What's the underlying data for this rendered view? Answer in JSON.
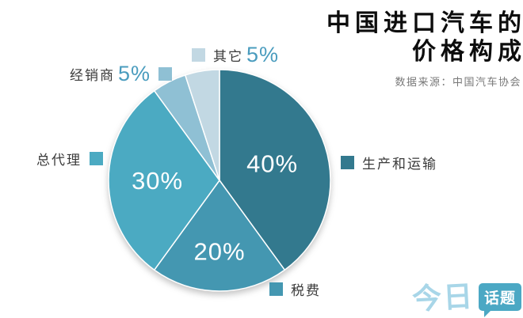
{
  "header": {
    "title_line1": "中国进口汽车的",
    "title_line2": "价格构成",
    "source": "数据来源：中国汽车协会"
  },
  "chart_data": {
    "type": "pie",
    "title": "中国进口汽车的价格构成",
    "source": "数据来源：中国汽车协会",
    "start_angle_deg": 0,
    "direction": "clockwise",
    "slices": [
      {
        "label": "生产和运输",
        "value": 40,
        "pct_label": "40%",
        "color": "#33798E",
        "inner_label": true,
        "label_r": 0.5
      },
      {
        "label": "税费",
        "value": 20,
        "pct_label": "20%",
        "color": "#4497B1",
        "inner_label": true,
        "label_r": 0.64
      },
      {
        "label": "总代理",
        "value": 30,
        "pct_label": "30%",
        "color": "#4BAAC2",
        "inner_label": true,
        "label_r": 0.56
      },
      {
        "label": "经销商",
        "value": 5,
        "pct_label": "5%",
        "color": "#8FC0D4",
        "inner_label": false,
        "label_r": 0
      },
      {
        "label": "其它",
        "value": 5,
        "pct_label": "5%",
        "color": "#C2D8E3",
        "inner_label": false,
        "label_r": 0
      }
    ]
  },
  "colors": {
    "accent_value_text": "#4A9CBE",
    "label_text": "#3A3A3A",
    "source_text": "#787878",
    "logo_script": "#A8D6E8",
    "logo_badge": "#4BA8C4"
  },
  "logo": {
    "part1": "今日",
    "part2": "话题"
  }
}
